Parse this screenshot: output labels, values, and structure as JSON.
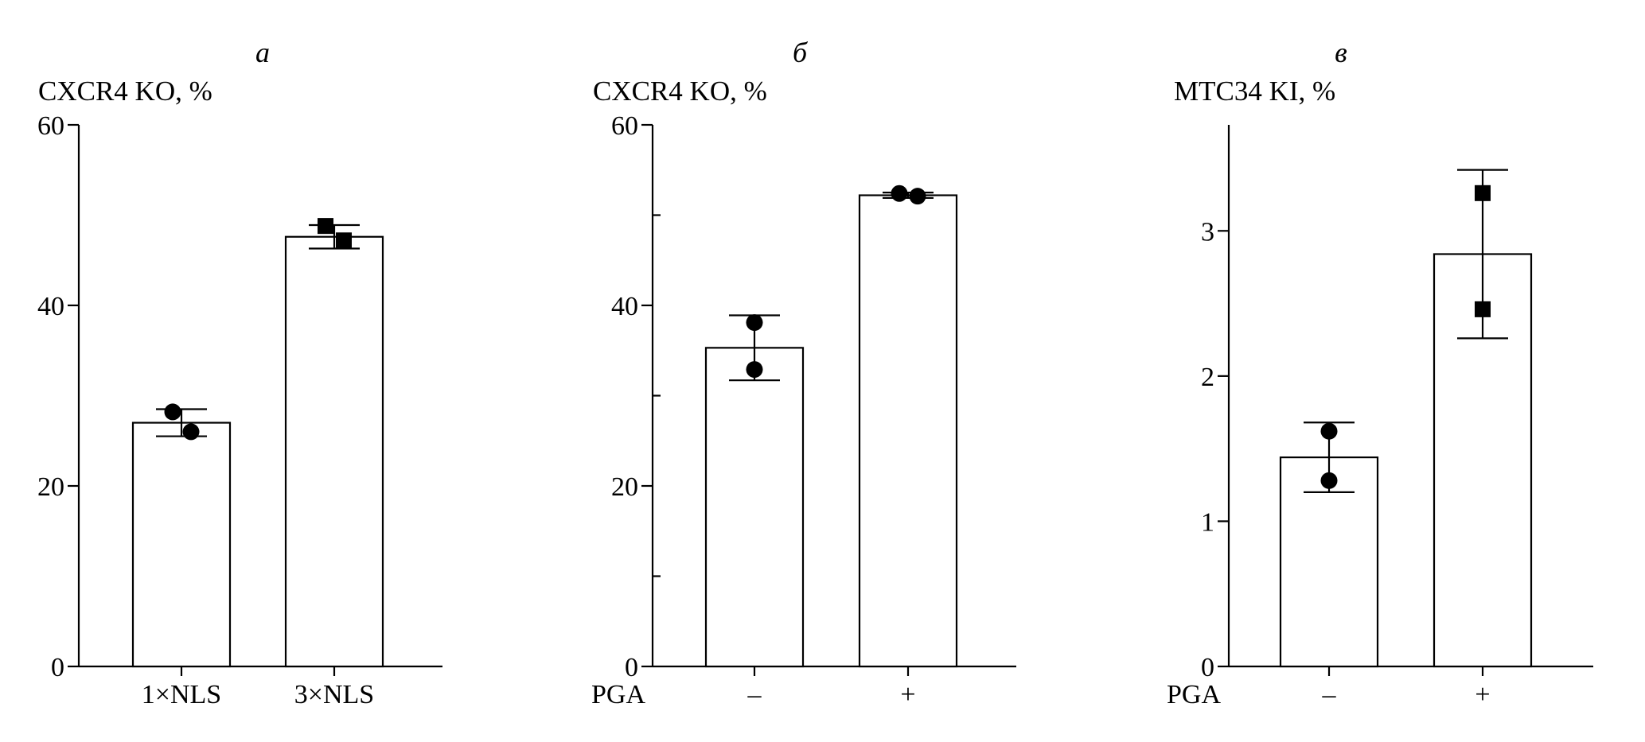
{
  "chart_data": [
    {
      "type": "bar",
      "panel_letter": "а",
      "ylabel": "CXCR4 KO, %",
      "xlabel": "",
      "categories": [
        "1×NLS",
        "3×NLS"
      ],
      "values": [
        27.0,
        47.6
      ],
      "error": [
        1.5,
        1.3
      ],
      "points": [
        [
          28.2,
          26.0
        ],
        [
          48.8,
          47.2
        ]
      ],
      "markers": [
        "circle",
        "square"
      ],
      "ylim": [
        0,
        60
      ],
      "yticks": [
        0,
        20,
        40,
        60
      ],
      "yticks_minor": [],
      "grid": false
    },
    {
      "type": "bar",
      "panel_letter": "б",
      "ylabel": "CXCR4 KO, %",
      "xlabel": "PGA",
      "categories": [
        "–",
        "+"
      ],
      "values": [
        35.3,
        52.2
      ],
      "error": [
        3.6,
        0.3
      ],
      "points": [
        [
          38.1,
          32.9
        ],
        [
          52.4,
          52.1
        ]
      ],
      "markers": [
        "circle",
        "circle"
      ],
      "ylim": [
        0,
        60
      ],
      "yticks": [
        0,
        20,
        40,
        60
      ],
      "yticks_minor": [
        10,
        30,
        50
      ],
      "grid": false
    },
    {
      "type": "bar",
      "panel_letter": "в",
      "ylabel": "MTC34 KI, %",
      "xlabel": "PGA",
      "categories": [
        "–",
        "+"
      ],
      "values": [
        1.44,
        2.84
      ],
      "error": [
        0.24,
        0.58
      ],
      "points": [
        [
          1.62,
          1.28
        ],
        [
          3.26,
          2.46
        ]
      ],
      "markers": [
        "circle",
        "square"
      ],
      "ylim": [
        0,
        3.73
      ],
      "yticks": [
        0,
        1,
        2,
        3
      ],
      "yticks_minor": [],
      "grid": false
    }
  ]
}
